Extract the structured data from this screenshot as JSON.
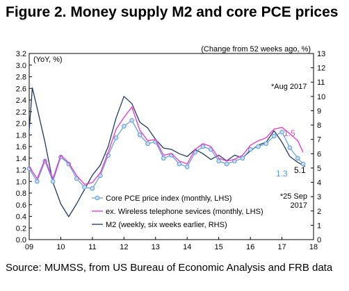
{
  "figure_title": "Figure 2. Money supply M2 and core PCE prices",
  "source_note": "Source: MUMSS, from US Bureau of Economic Analysis and FRB data",
  "chart_data": {
    "type": "line",
    "left_axis_label": "(YoY, %)",
    "right_axis_label": "(Change from 52 weeks ago, %)",
    "x_ticks": [
      "09",
      "10",
      "11",
      "12",
      "13",
      "14",
      "15",
      "16",
      "17",
      "18"
    ],
    "xlim": [
      2009.0,
      2018.0
    ],
    "ylim_left": [
      0.0,
      3.2
    ],
    "y_ticks_left": [
      "0.0",
      "0.2",
      "0.4",
      "0.6",
      "0.8",
      "1.0",
      "1.2",
      "1.4",
      "1.6",
      "1.8",
      "2.0",
      "2.2",
      "2.4",
      "2.6",
      "2.8",
      "3.0",
      "3.2"
    ],
    "ylim_right": [
      0,
      13
    ],
    "y_ticks_right": [
      "0",
      "1",
      "2",
      "3",
      "4",
      "5",
      "6",
      "7",
      "8",
      "9",
      "10",
      "11",
      "12",
      "13"
    ],
    "grid": false,
    "legend_placement": "bottom-left",
    "annotations": {
      "aug_2017": "*Aug 2017",
      "sep_2017": "*25 Sep 2017",
      "label_core_end": "1.3",
      "label_wireless_end": "1.5",
      "label_m2_end": "5.1"
    },
    "colors": {
      "core_pce": "#5b9bd5",
      "core_pce_marker_fill": "#c8ddf0",
      "wireless": "#e83fd1",
      "m2": "#1f3864"
    },
    "series": [
      {
        "name": "Core PCE price index (monthly, LHS)",
        "axis": "left",
        "x": [
          2009.0,
          2009.25,
          2009.5,
          2009.75,
          2010.0,
          2010.25,
          2010.5,
          2010.75,
          2011.0,
          2011.25,
          2011.5,
          2011.75,
          2012.0,
          2012.25,
          2012.5,
          2012.75,
          2013.0,
          2013.25,
          2013.5,
          2013.75,
          2014.0,
          2014.25,
          2014.5,
          2014.75,
          2015.0,
          2015.25,
          2015.5,
          2015.75,
          2016.0,
          2016.25,
          2016.5,
          2016.75,
          2017.0,
          2017.25,
          2017.5,
          2017.67
        ],
        "y": [
          1.22,
          1.0,
          1.35,
          1.0,
          1.42,
          1.3,
          1.05,
          0.9,
          0.88,
          1.1,
          1.45,
          1.75,
          1.95,
          2.05,
          1.8,
          1.65,
          1.68,
          1.4,
          1.45,
          1.3,
          1.25,
          1.5,
          1.6,
          1.55,
          1.35,
          1.3,
          1.35,
          1.4,
          1.55,
          1.6,
          1.65,
          1.78,
          1.85,
          1.58,
          1.4,
          1.3
        ]
      },
      {
        "name": "ex. Wireless telephone sevices (monthly, LHS)",
        "axis": "left",
        "x": [
          2009.0,
          2009.25,
          2009.5,
          2009.75,
          2010.0,
          2010.25,
          2010.5,
          2010.75,
          2011.0,
          2011.25,
          2011.5,
          2011.75,
          2012.0,
          2012.25,
          2012.5,
          2012.75,
          2013.0,
          2013.25,
          2013.5,
          2013.75,
          2014.0,
          2014.25,
          2014.5,
          2014.75,
          2015.0,
          2015.25,
          2015.5,
          2015.75,
          2016.0,
          2016.25,
          2016.5,
          2016.75,
          2017.0,
          2017.25,
          2017.5,
          2017.67
        ],
        "y": [
          1.25,
          1.05,
          1.38,
          1.05,
          1.45,
          1.32,
          1.1,
          0.95,
          0.98,
          1.15,
          1.5,
          1.9,
          2.1,
          2.28,
          1.88,
          1.7,
          1.72,
          1.45,
          1.48,
          1.35,
          1.3,
          1.55,
          1.65,
          1.6,
          1.4,
          1.35,
          1.38,
          1.45,
          1.62,
          1.7,
          1.75,
          1.9,
          1.93,
          1.82,
          1.7,
          1.5
        ]
      },
      {
        "name": "M2 (weekly, six weeks earlier, RHS)",
        "axis": "right",
        "x": [
          2009.0,
          2009.1,
          2009.25,
          2009.5,
          2009.75,
          2010.0,
          2010.25,
          2010.5,
          2010.75,
          2011.0,
          2011.25,
          2011.5,
          2011.75,
          2012.0,
          2012.25,
          2012.5,
          2012.75,
          2013.0,
          2013.25,
          2013.5,
          2013.75,
          2014.0,
          2014.25,
          2014.5,
          2014.75,
          2015.0,
          2015.25,
          2015.5,
          2015.75,
          2016.0,
          2016.25,
          2016.5,
          2016.75,
          2017.0,
          2017.25,
          2017.5,
          2017.73
        ],
        "y": [
          7.6,
          10.6,
          9.2,
          6.8,
          4.0,
          2.5,
          1.6,
          2.5,
          3.5,
          4.5,
          5.2,
          6.5,
          8.5,
          10.0,
          9.5,
          8.2,
          7.8,
          7.0,
          6.4,
          6.3,
          6.0,
          5.8,
          6.3,
          6.0,
          5.6,
          5.9,
          5.5,
          5.9,
          5.7,
          6.2,
          6.6,
          6.8,
          7.6,
          6.8,
          5.8,
          5.4,
          5.1
        ]
      }
    ]
  }
}
